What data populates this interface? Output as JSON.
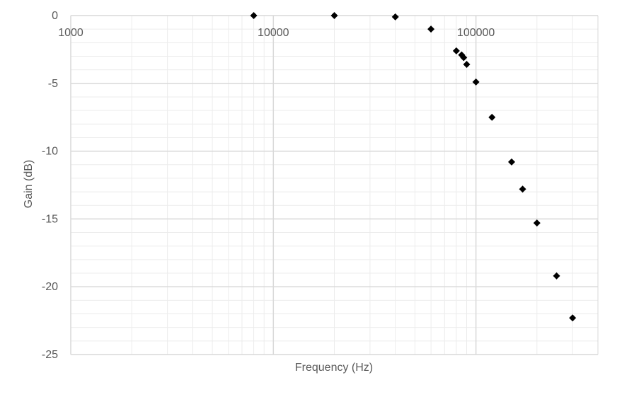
{
  "chart_data": {
    "type": "scatter",
    "title": "",
    "xlabel": "Frequency (Hz)",
    "ylabel": "Gain (dB)",
    "x_scale": "log",
    "xlim": [
      1000,
      400000
    ],
    "ylim": [
      -25,
      0
    ],
    "x_ticks": [
      1000,
      10000,
      100000
    ],
    "x_tick_labels": [
      "1000",
      "10000",
      "100000"
    ],
    "y_ticks": [
      0,
      -5,
      -10,
      -15,
      -20,
      -25
    ],
    "y_tick_labels": [
      "0",
      "-5",
      "-10",
      "-15",
      "-20",
      "-25"
    ],
    "y_minor_step": 1,
    "grid": true,
    "legend": "none",
    "marker": "diamond",
    "colors": {
      "marker": "#000000",
      "major_grid": "#d9d9d9",
      "minor_grid": "#ececec",
      "axis_text": "#595959"
    },
    "series": [
      {
        "points": [
          {
            "x": 8000,
            "y": 0
          },
          {
            "x": 20000,
            "y": 0
          },
          {
            "x": 40000,
            "y": -0.1
          },
          {
            "x": 60000,
            "y": -1.0
          },
          {
            "x": 80000,
            "y": -2.6
          },
          {
            "x": 85000,
            "y": -2.9
          },
          {
            "x": 87000,
            "y": -3.1
          },
          {
            "x": 90000,
            "y": -3.6
          },
          {
            "x": 100000,
            "y": -4.9
          },
          {
            "x": 120000,
            "y": -7.5
          },
          {
            "x": 150000,
            "y": -10.8
          },
          {
            "x": 170000,
            "y": -12.8
          },
          {
            "x": 200000,
            "y": -15.3
          },
          {
            "x": 250000,
            "y": -19.2
          },
          {
            "x": 300000,
            "y": -22.3
          }
        ]
      }
    ]
  }
}
